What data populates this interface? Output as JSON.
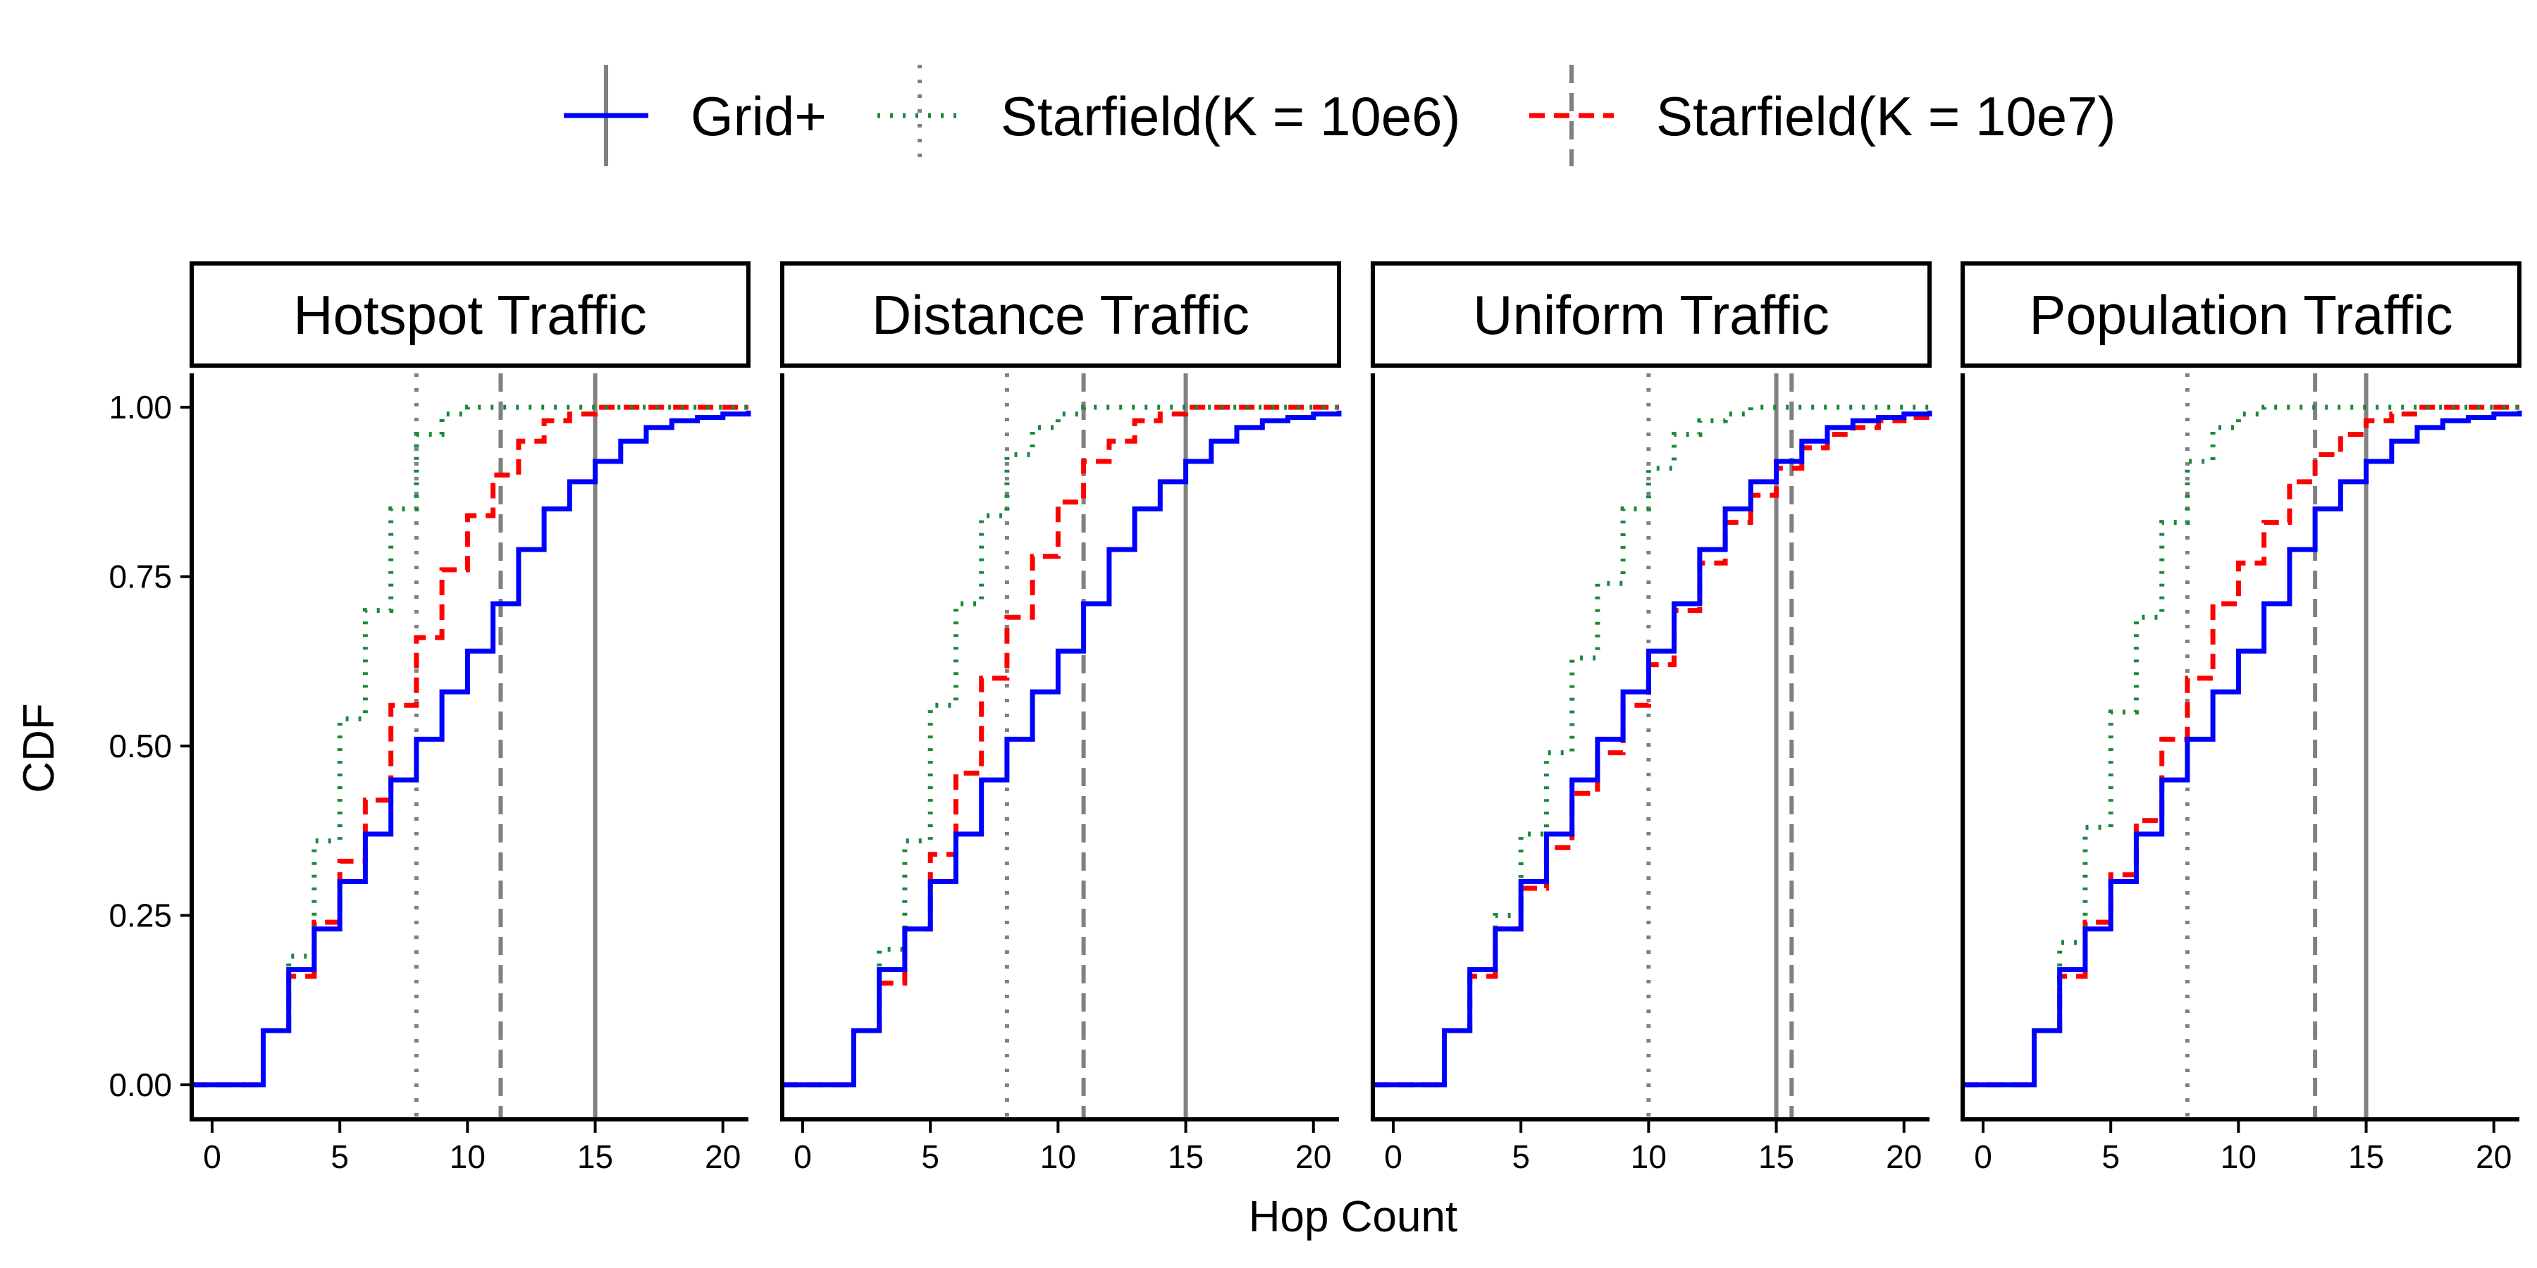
{
  "chart_data": {
    "type": "line",
    "subtype": "step-cdf-facets",
    "xlabel": "Hop Count",
    "ylabel": "CDF",
    "xlim": [
      -0.8,
      21.0
    ],
    "ylim": [
      -0.05,
      1.05
    ],
    "x_ticks": [
      0,
      5,
      10,
      15,
      20
    ],
    "y_ticks": [
      0.0,
      0.25,
      0.5,
      0.75,
      1.0
    ],
    "x_tick_labels": [
      "0",
      "5",
      "10",
      "15",
      "20"
    ],
    "y_tick_labels": [
      "0.00",
      "0.25",
      "0.50",
      "0.75",
      "1.00"
    ],
    "legend": {
      "placement": "top",
      "entries": [
        {
          "name": "Grid+",
          "color": "#0000ff",
          "dash": "solid"
        },
        {
          "name": "Starfield(K = 10e6)",
          "color": "#1a8a3a",
          "dash": "dotted"
        },
        {
          "name": "Starfield(K = 10e7)",
          "color": "#ff0000",
          "dash": "dashed"
        }
      ]
    },
    "x": [
      0,
      2,
      3,
      4,
      5,
      6,
      7,
      8,
      9,
      10,
      11,
      12,
      13,
      14,
      15,
      16,
      17,
      18,
      19,
      20,
      21
    ],
    "facets": [
      {
        "title": "Hotspot Traffic",
        "series": [
          {
            "name": "Grid+",
            "values": [
              0.0,
              0.08,
              0.17,
              0.23,
              0.3,
              0.37,
              0.45,
              0.51,
              0.58,
              0.64,
              0.71,
              0.79,
              0.85,
              0.89,
              0.92,
              0.95,
              0.97,
              0.98,
              0.985,
              0.99,
              0.995
            ]
          },
          {
            "name": "Starfield(K = 10e6)",
            "values": [
              0.0,
              0.08,
              0.19,
              0.36,
              0.54,
              0.7,
              0.85,
              0.96,
              0.99,
              1.0,
              1.0,
              1.0,
              1.0,
              1.0,
              1.0,
              1.0,
              1.0,
              1.0,
              1.0,
              1.0,
              1.0
            ]
          },
          {
            "name": "Starfield(K = 10e7)",
            "values": [
              0.0,
              0.08,
              0.16,
              0.24,
              0.33,
              0.42,
              0.56,
              0.66,
              0.76,
              0.84,
              0.9,
              0.95,
              0.98,
              0.99,
              1.0,
              1.0,
              1.0,
              1.0,
              1.0,
              1.0,
              1.0
            ]
          }
        ],
        "vlines": [
          {
            "series": "Grid+",
            "x": 15.0
          },
          {
            "series": "Starfield(K = 10e6)",
            "x": 8.0
          },
          {
            "series": "Starfield(K = 10e7)",
            "x": 11.3
          }
        ]
      },
      {
        "title": "Distance Traffic",
        "series": [
          {
            "name": "Grid+",
            "values": [
              0.0,
              0.08,
              0.17,
              0.23,
              0.3,
              0.37,
              0.45,
              0.51,
              0.58,
              0.64,
              0.71,
              0.79,
              0.85,
              0.89,
              0.92,
              0.95,
              0.97,
              0.98,
              0.985,
              0.99,
              0.995
            ]
          },
          {
            "name": "Starfield(K = 10e6)",
            "values": [
              0.0,
              0.08,
              0.2,
              0.36,
              0.56,
              0.71,
              0.84,
              0.93,
              0.97,
              0.99,
              1.0,
              1.0,
              1.0,
              1.0,
              1.0,
              1.0,
              1.0,
              1.0,
              1.0,
              1.0,
              1.0
            ]
          },
          {
            "name": "Starfield(K = 10e7)",
            "values": [
              0.0,
              0.08,
              0.15,
              0.23,
              0.34,
              0.46,
              0.6,
              0.69,
              0.78,
              0.86,
              0.92,
              0.95,
              0.98,
              0.99,
              1.0,
              1.0,
              1.0,
              1.0,
              1.0,
              1.0,
              1.0
            ]
          }
        ],
        "vlines": [
          {
            "series": "Grid+",
            "x": 15.0
          },
          {
            "series": "Starfield(K = 10e6)",
            "x": 8.0
          },
          {
            "series": "Starfield(K = 10e7)",
            "x": 11.0
          }
        ]
      },
      {
        "title": "Uniform Traffic",
        "series": [
          {
            "name": "Grid+",
            "values": [
              0.0,
              0.08,
              0.17,
              0.23,
              0.3,
              0.37,
              0.45,
              0.51,
              0.58,
              0.64,
              0.71,
              0.79,
              0.85,
              0.89,
              0.92,
              0.95,
              0.97,
              0.98,
              0.985,
              0.99,
              0.995
            ]
          },
          {
            "name": "Starfield(K = 10e6)",
            "values": [
              0.0,
              0.08,
              0.17,
              0.25,
              0.37,
              0.49,
              0.63,
              0.74,
              0.85,
              0.91,
              0.96,
              0.98,
              0.99,
              1.0,
              1.0,
              1.0,
              1.0,
              1.0,
              1.0,
              1.0,
              1.0
            ]
          },
          {
            "name": "Starfield(K = 10e7)",
            "values": [
              0.0,
              0.08,
              0.16,
              0.23,
              0.29,
              0.35,
              0.43,
              0.49,
              0.56,
              0.62,
              0.7,
              0.77,
              0.83,
              0.87,
              0.91,
              0.94,
              0.96,
              0.97,
              0.98,
              0.985,
              0.99
            ]
          }
        ],
        "vlines": [
          {
            "series": "Grid+",
            "x": 15.0
          },
          {
            "series": "Starfield(K = 10e6)",
            "x": 10.0
          },
          {
            "series": "Starfield(K = 10e7)",
            "x": 15.6
          }
        ]
      },
      {
        "title": "Population Traffic",
        "series": [
          {
            "name": "Grid+",
            "values": [
              0.0,
              0.08,
              0.17,
              0.23,
              0.3,
              0.37,
              0.45,
              0.51,
              0.58,
              0.64,
              0.71,
              0.79,
              0.85,
              0.89,
              0.92,
              0.95,
              0.97,
              0.98,
              0.985,
              0.99,
              0.995
            ]
          },
          {
            "name": "Starfield(K = 10e6)",
            "values": [
              0.0,
              0.08,
              0.21,
              0.38,
              0.55,
              0.69,
              0.83,
              0.92,
              0.97,
              0.99,
              1.0,
              1.0,
              1.0,
              1.0,
              1.0,
              1.0,
              1.0,
              1.0,
              1.0,
              1.0,
              1.0
            ]
          },
          {
            "name": "Starfield(K = 10e7)",
            "values": [
              0.0,
              0.08,
              0.16,
              0.24,
              0.31,
              0.39,
              0.51,
              0.6,
              0.71,
              0.77,
              0.83,
              0.89,
              0.93,
              0.96,
              0.98,
              0.99,
              1.0,
              1.0,
              1.0,
              1.0,
              1.0
            ]
          }
        ],
        "vlines": [
          {
            "series": "Grid+",
            "x": 15.0
          },
          {
            "series": "Starfield(K = 10e6)",
            "x": 8.0
          },
          {
            "series": "Starfield(K = 10e7)",
            "x": 13.0
          }
        ]
      }
    ]
  }
}
